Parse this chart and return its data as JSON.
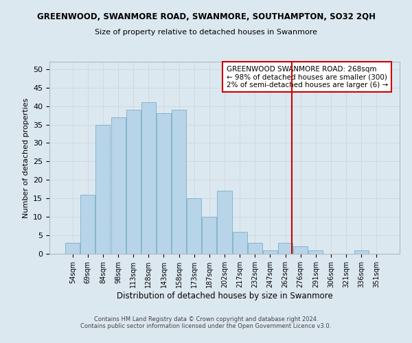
{
  "title": "GREENWOOD, SWANMORE ROAD, SWANMORE, SOUTHAMPTON, SO32 2QH",
  "subtitle": "Size of property relative to detached houses in Swanmore",
  "xlabel": "Distribution of detached houses by size in Swanmore",
  "ylabel": "Number of detached properties",
  "bar_labels": [
    "54sqm",
    "69sqm",
    "84sqm",
    "98sqm",
    "113sqm",
    "128sqm",
    "143sqm",
    "158sqm",
    "173sqm",
    "187sqm",
    "202sqm",
    "217sqm",
    "232sqm",
    "247sqm",
    "262sqm",
    "276sqm",
    "291sqm",
    "306sqm",
    "321sqm",
    "336sqm",
    "351sqm"
  ],
  "bar_heights": [
    3,
    16,
    35,
    37,
    39,
    41,
    38,
    39,
    15,
    10,
    17,
    6,
    3,
    1,
    3,
    2,
    1,
    0,
    0,
    1,
    0
  ],
  "bar_color": "#b8d4e8",
  "bar_edge_color": "#7aafc8",
  "ylim": [
    0,
    52
  ],
  "yticks": [
    0,
    5,
    10,
    15,
    20,
    25,
    30,
    35,
    40,
    45,
    50
  ],
  "grid_color": "#d0d8e0",
  "bg_color": "#dce8f0",
  "fig_bg_color": "#dce8f0",
  "vline_color": "#cc0000",
  "annotation_title": "GREENWOOD SWANMORE ROAD: 268sqm",
  "annotation_line1": "← 98% of detached houses are smaller (300)",
  "annotation_line2": "2% of semi-detached houses are larger (6) →",
  "annotation_box_color": "#cc0000",
  "footer1": "Contains HM Land Registry data © Crown copyright and database right 2024.",
  "footer2": "Contains public sector information licensed under the Open Government Licence v3.0."
}
